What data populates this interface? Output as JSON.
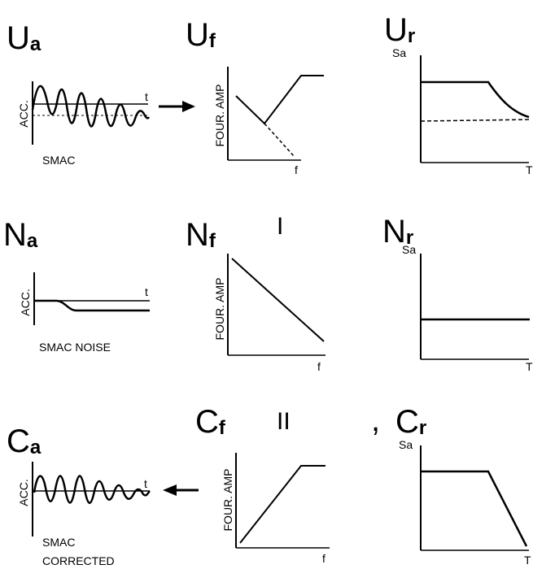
{
  "rows": {
    "U": {
      "acc_title": {
        "main": "U",
        "sub": "a"
      },
      "four_title": {
        "main": "U",
        "sub": "f"
      },
      "resp_title": {
        "main": "U",
        "sub": "r"
      },
      "acc_ylabel": "ACC.",
      "acc_xlabel": "t",
      "acc_caption": [
        "SMAC"
      ],
      "four_ylabel": "FOUR. AMP",
      "four_xlabel": "f",
      "resp_ylabel": "Sa",
      "resp_xlabel": "T",
      "roman": ""
    },
    "N": {
      "acc_title": {
        "main": "N",
        "sub": "a"
      },
      "four_title": {
        "main": "N",
        "sub": "f"
      },
      "resp_title": {
        "main": "N",
        "sub": "r"
      },
      "acc_ylabel": "ACC.",
      "acc_xlabel": "t",
      "acc_caption": [
        "SMAC NOISE"
      ],
      "four_ylabel": "FOUR. AMP",
      "four_xlabel": "f",
      "resp_ylabel": "Sa",
      "resp_xlabel": "T",
      "roman": "I"
    },
    "C": {
      "acc_title": {
        "main": "C",
        "sub": "a"
      },
      "four_title": {
        "main": "C",
        "sub": "f"
      },
      "resp_title": {
        "main": "C",
        "sub": "r"
      },
      "acc_ylabel": "ACC.",
      "acc_xlabel": "t",
      "acc_caption": [
        "SMAC",
        "CORRECTED"
      ],
      "four_ylabel": "FOUR. AMP",
      "four_xlabel": "f",
      "resp_ylabel": "Sa",
      "resp_xlabel": "T",
      "roman": "II"
    }
  },
  "stray_mark": ","
}
